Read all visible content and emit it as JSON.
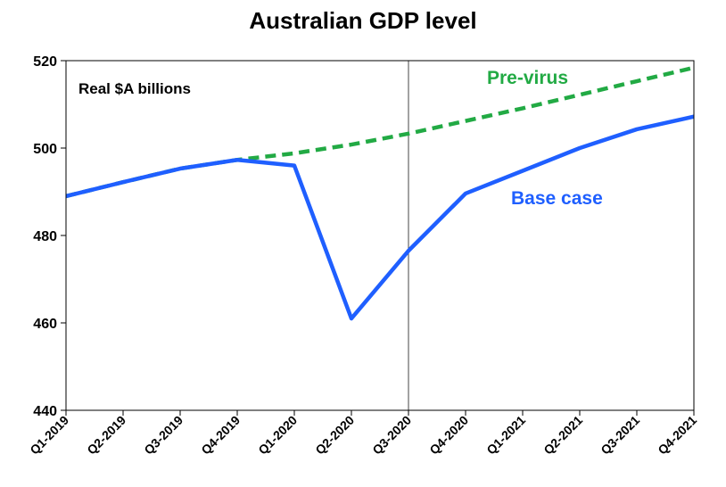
{
  "chart_data": {
    "type": "line",
    "title": "Australian GDP level",
    "unit_label": "Real $A billions",
    "categories": [
      "Q1-2019",
      "Q2-2019",
      "Q3-2019",
      "Q4-2019",
      "Q1-2020",
      "Q2-2020",
      "Q3-2020",
      "Q4-2020",
      "Q1-2021",
      "Q2-2021",
      "Q3-2021",
      "Q4-2021"
    ],
    "ylim": [
      440,
      520
    ],
    "yticks": [
      440,
      460,
      480,
      500,
      520
    ],
    "grid": false,
    "vertical_marker_at": "Q3-2020",
    "series": [
      {
        "name": "Pre-virus",
        "color": "#22aa44",
        "style": "dashed",
        "values": [
          489,
          492.2,
          495.3,
          497.3,
          498.8,
          500.8,
          503.3,
          506.2,
          509.1,
          512.2,
          515.3,
          518.4
        ]
      },
      {
        "name": "Base case",
        "color": "#1f5fff",
        "style": "solid",
        "values": [
          489,
          492.2,
          495.3,
          497.3,
          496,
          461,
          476.5,
          489.6,
          494.8,
          500,
          504.3,
          507.2
        ]
      }
    ]
  }
}
